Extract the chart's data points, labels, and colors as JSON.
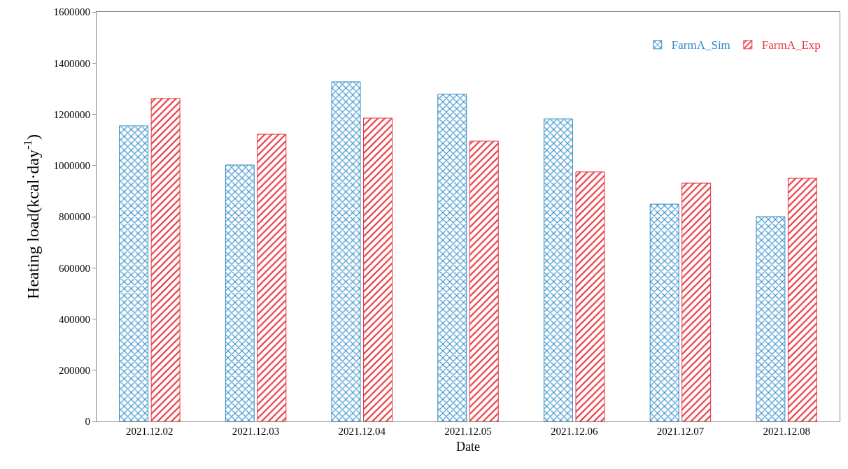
{
  "chart_data": {
    "type": "bar",
    "xlabel": "Date",
    "ylabel": "Heating load(kcal·day$^{-1}$)",
    "categories": [
      "2021.12.02",
      "2021.12.03",
      "2021.12.04",
      "2021.12.05",
      "2021.12.06",
      "2021.12.07",
      "2021.12.08"
    ],
    "series": [
      {
        "name": "FarmA_Sim",
        "color": "#2e8bc8",
        "values": [
          1155000,
          1002000,
          1327000,
          1278000,
          1182000,
          849000,
          800000
        ]
      },
      {
        "name": "FarmA_Exp",
        "color": "#e8343c",
        "values": [
          1262000,
          1122000,
          1185000,
          1095000,
          975000,
          931000,
          950000
        ]
      }
    ],
    "ylim": [
      0,
      1600000
    ],
    "yticks": [
      0,
      200000,
      400000,
      600000,
      800000,
      1000000,
      1200000,
      1400000,
      1600000
    ],
    "grid": false,
    "legend": "top right"
  }
}
